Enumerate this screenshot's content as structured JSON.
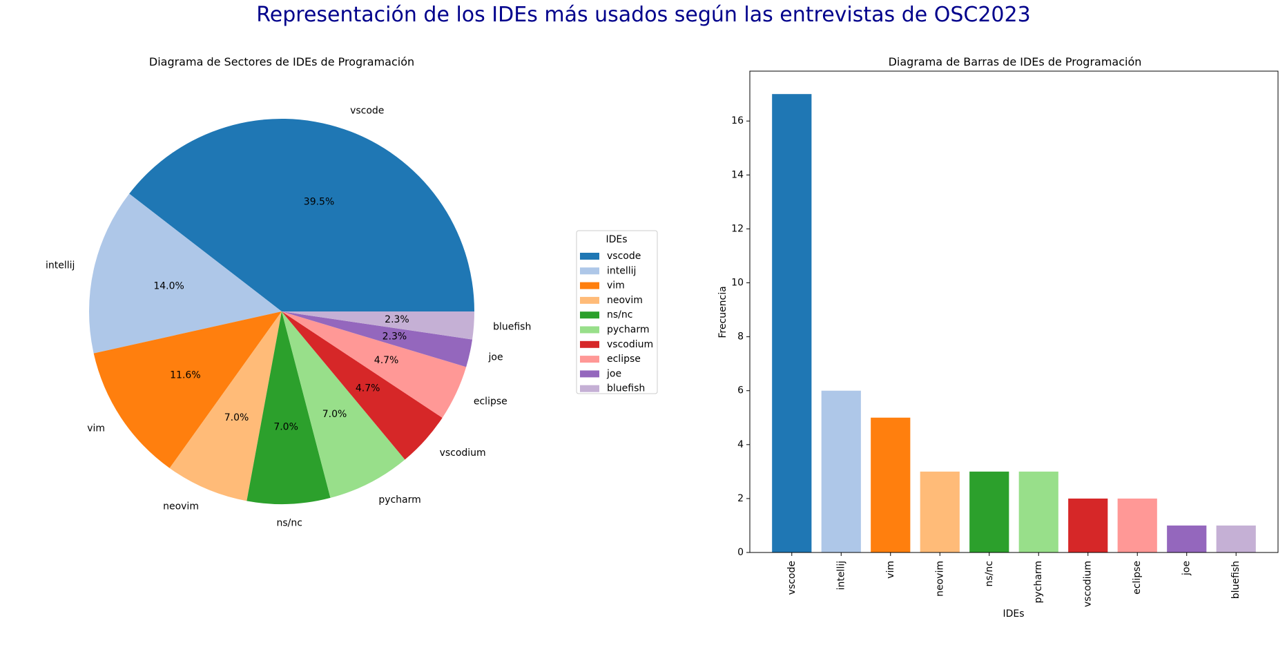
{
  "figure": {
    "suptitle": "Representación de los IDEs más usados según las entrevistas de OSC2023",
    "suptitle_color": "#00008b"
  },
  "chart_data": [
    {
      "type": "pie",
      "title": "Diagrama de Sectores de IDEs de Programación",
      "labels": [
        "vscode",
        "intellij",
        "vim",
        "neovim",
        "ns/nc",
        "pycharm",
        "vscodium",
        "eclipse",
        "joe",
        "bluefish"
      ],
      "values": [
        17,
        6,
        5,
        3,
        3,
        3,
        2,
        2,
        1,
        1
      ],
      "percent_labels": [
        "39.5%",
        "14.0%",
        "11.6%",
        "7.0%",
        "7.0%",
        "7.0%",
        "4.7%",
        "4.7%",
        "2.3%",
        "2.3%"
      ],
      "colors": [
        "#1f77b4",
        "#aec7e8",
        "#ff7f0e",
        "#ffbb78",
        "#2ca02c",
        "#98df8a",
        "#d62728",
        "#ff9896",
        "#9467bd",
        "#c5b0d5"
      ],
      "start_angle": 0,
      "direction": "counterclockwise",
      "legend": {
        "title": "IDEs",
        "placement": "right of pie"
      }
    },
    {
      "type": "bar",
      "title": "Diagrama de Barras de IDEs de Programación",
      "categories": [
        "vscode",
        "intellij",
        "vim",
        "neovim",
        "ns/nc",
        "pycharm",
        "vscodium",
        "eclipse",
        "joe",
        "bluefish"
      ],
      "values": [
        17,
        6,
        5,
        3,
        3,
        3,
        2,
        2,
        1,
        1
      ],
      "colors": [
        "#1f77b4",
        "#aec7e8",
        "#ff7f0e",
        "#ffbb78",
        "#2ca02c",
        "#98df8a",
        "#d62728",
        "#ff9896",
        "#9467bd",
        "#c5b0d5"
      ],
      "xlabel": "IDEs",
      "ylabel": "Frecuencia",
      "ylim": [
        0,
        17.85
      ],
      "yticks": [
        0,
        2,
        4,
        6,
        8,
        10,
        12,
        14,
        16
      ],
      "xtick_rotation": "vertical",
      "grid": false
    }
  ]
}
